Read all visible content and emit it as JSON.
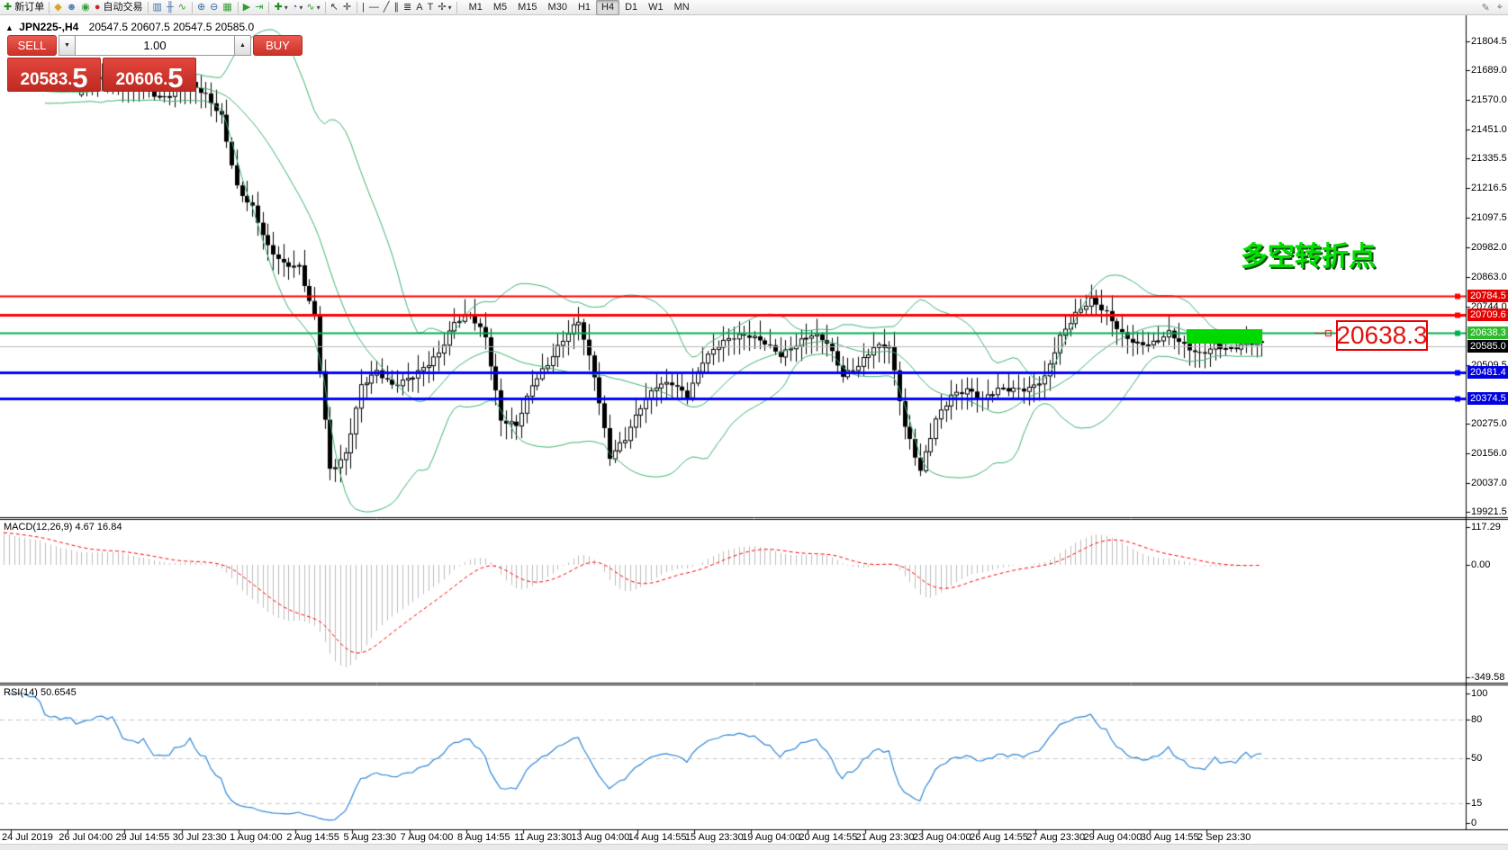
{
  "toolbar": {
    "items": [
      {
        "name": "new-order-icon",
        "glyph": "✚",
        "color": "#18941d",
        "label": "新订单"
      },
      {
        "sep": true
      },
      {
        "name": "eraser-icon",
        "glyph": "◆",
        "color": "#d9a41e"
      },
      {
        "name": "expert-advisor-icon",
        "glyph": "☻",
        "color": "#4a7ebf"
      },
      {
        "name": "signal-icon",
        "glyph": "◉",
        "color": "#2f9e2f"
      },
      {
        "name": "autotrade-icon",
        "glyph": "●",
        "color": "#cc2525",
        "label": "自动交易"
      },
      {
        "sep": true
      },
      {
        "name": "bar-chart-icon",
        "glyph": "▥",
        "color": "#3a6ea5"
      },
      {
        "name": "candlestick-chart-icon",
        "glyph": "╫",
        "color": "#3a6ea5"
      },
      {
        "name": "line-chart-icon",
        "glyph": "∿",
        "color": "#2f9e2f"
      },
      {
        "sep": true
      },
      {
        "name": "zoom-in-icon",
        "glyph": "⊕",
        "color": "#3a6ea5"
      },
      {
        "name": "zoom-out-icon",
        "glyph": "⊖",
        "color": "#3a6ea5"
      },
      {
        "name": "tile-windows-icon",
        "glyph": "▦",
        "color": "#2f9e2f"
      },
      {
        "sep": true
      },
      {
        "name": "auto-scroll-icon",
        "glyph": "▶",
        "color": "#2f9e2f"
      },
      {
        "name": "chart-shift-icon",
        "glyph": "⇥",
        "color": "#2f9e2f"
      },
      {
        "sep": true
      },
      {
        "name": "new-chart-icon",
        "glyph": "✚",
        "color": "#18941d",
        "dropdown": true
      },
      {
        "name": "periods-icon",
        "glyph": "◔",
        "color": "#3a6ea5",
        "dropdown": true
      },
      {
        "name": "indicators-icon",
        "glyph": "∿",
        "color": "#2f9e2f",
        "dropdown": true
      },
      {
        "sep": true
      },
      {
        "name": "cursor-icon",
        "glyph": "↖",
        "color": "#333333"
      },
      {
        "name": "crosshair-icon",
        "glyph": "✛",
        "color": "#333333"
      },
      {
        "sep": true
      },
      {
        "name": "vertical-line-icon",
        "glyph": "|",
        "color": "#333333"
      },
      {
        "name": "horizontal-line-icon",
        "glyph": "—",
        "color": "#333333"
      },
      {
        "name": "trendline-icon",
        "glyph": "╱",
        "color": "#333333"
      },
      {
        "name": "channel-icon",
        "glyph": "∥",
        "color": "#333333"
      },
      {
        "name": "fibonacci-icon",
        "glyph": "≣",
        "color": "#333333"
      },
      {
        "name": "text-icon",
        "glyph": "A",
        "color": "#333333"
      },
      {
        "name": "text-label-icon",
        "glyph": "T",
        "color": "#333333"
      },
      {
        "name": "arrows-icon",
        "glyph": "✢",
        "color": "#333333",
        "dropdown": true
      },
      {
        "sep": true
      }
    ],
    "timeframes": [
      "M1",
      "M5",
      "M15",
      "M30",
      "H1",
      "H4",
      "D1",
      "W1",
      "MN"
    ],
    "active_timeframe": "H4",
    "right_icons": [
      {
        "name": "edit-icon",
        "glyph": "✎",
        "color": "#777777"
      },
      {
        "name": "pointer-icon",
        "glyph": "⌖",
        "color": "#777777"
      }
    ]
  },
  "chart_header": {
    "marker": "▲",
    "symbol_period": "JPN225-,H4",
    "ohlc": "20547.5 20607.5 20547.5 20585.0"
  },
  "trade_panel": {
    "sell_label": "SELL",
    "buy_label": "BUY",
    "volume": "1.00",
    "spinner_down": "▼",
    "spinner_up": "▲",
    "sell_price_int": "20583",
    "sell_price_dot": ".",
    "sell_price_frac": "5",
    "buy_price_int": "20606",
    "buy_price_dot": ".",
    "buy_price_frac": "5"
  },
  "annotations": {
    "turning_point_text": "多空转折点",
    "price_callout": "20638.3"
  },
  "price_axis_ticks": [
    "21804.5",
    "21689.0",
    "21570.0",
    "21451.0",
    "21335.5",
    "21216.5",
    "21097.5",
    "20982.0",
    "20863.0",
    "20744.0",
    "20509.5",
    "20275.0",
    "20156.0",
    "20037.0",
    "19921.5"
  ],
  "line_labels": [
    {
      "label": "20784.5",
      "price": 20784.5,
      "color": "#e60000"
    },
    {
      "label": "20709.6",
      "price": 20709.6,
      "color": "#e60000"
    },
    {
      "label": "20638.3",
      "price": 20638.3,
      "color": "#2dbb2d"
    },
    {
      "label": "20585.0",
      "price": 20585.0,
      "color": "#000000"
    },
    {
      "label": "20481.4",
      "price": 20481.4,
      "color": "#0000e0"
    },
    {
      "label": "20374.5",
      "price": 20374.5,
      "color": "#0000e0"
    }
  ],
  "macd_pane": {
    "label": "MACD(12,26,9) 4.67 16.84",
    "ticks": [
      "117.29",
      "0.00",
      "-349.58"
    ]
  },
  "rsi_pane": {
    "label": "RSI(14) 50.6545",
    "ticks": [
      "100",
      "80",
      "50",
      "15",
      "0"
    ],
    "levels": [
      80,
      50,
      15
    ]
  },
  "time_axis": [
    "24 Jul 2019",
    "26 Jul 04:00",
    "29 Jul 14:55",
    "30 Jul 23:30",
    "1 Aug 04:00",
    "2 Aug 14:55",
    "5 Aug 23:30",
    "7 Aug 04:00",
    "8 Aug 14:55",
    "11 Aug 23:30",
    "13 Aug 04:00",
    "14 Aug 14:55",
    "15 Aug 23:30",
    "19 Aug 04:00",
    "20 Aug 14:55",
    "21 Aug 23:30",
    "23 Aug 04:00",
    "26 Aug 14:55",
    "27 Aug 23:30",
    "29 Aug 04:00",
    "30 Aug 14:55",
    "2 Sep 23:30"
  ],
  "chart_data": {
    "type": "candlestick",
    "symbol": "JPN225-",
    "timeframe": "H4",
    "y_range": [
      19921.5,
      21862.0
    ],
    "close_samples": [
      [
        0,
        21560
      ],
      [
        3,
        21600
      ],
      [
        6,
        21625
      ],
      [
        9,
        21585
      ],
      [
        12,
        21615
      ],
      [
        15,
        21610
      ],
      [
        18,
        21645
      ],
      [
        21,
        21655
      ],
      [
        24,
        21605
      ],
      [
        27,
        21630
      ],
      [
        30,
        21590
      ],
      [
        33,
        21605
      ],
      [
        36,
        21625
      ],
      [
        39,
        21575
      ],
      [
        42,
        21500
      ],
      [
        45,
        21230
      ],
      [
        48,
        21150
      ],
      [
        51,
        20980
      ],
      [
        54,
        20900
      ],
      [
        57,
        20890
      ],
      [
        60,
        20700
      ],
      [
        63,
        20100
      ],
      [
        66,
        20160
      ],
      [
        69,
        20420
      ],
      [
        72,
        20470
      ],
      [
        75,
        20420
      ],
      [
        78,
        20460
      ],
      [
        81,
        20510
      ],
      [
        84,
        20560
      ],
      [
        87,
        20670
      ],
      [
        90,
        20700
      ],
      [
        93,
        20620
      ],
      [
        96,
        20300
      ],
      [
        99,
        20280
      ],
      [
        102,
        20430
      ],
      [
        105,
        20500
      ],
      [
        108,
        20600
      ],
      [
        111,
        20690
      ],
      [
        114,
        20480
      ],
      [
        117,
        20150
      ],
      [
        120,
        20210
      ],
      [
        123,
        20330
      ],
      [
        126,
        20420
      ],
      [
        129,
        20445
      ],
      [
        132,
        20400
      ],
      [
        135,
        20530
      ],
      [
        138,
        20580
      ],
      [
        141,
        20610
      ],
      [
        144,
        20625
      ],
      [
        147,
        20610
      ],
      [
        150,
        20560
      ],
      [
        153,
        20590
      ],
      [
        156,
        20620
      ],
      [
        159,
        20590
      ],
      [
        162,
        20470
      ],
      [
        165,
        20520
      ],
      [
        168,
        20590
      ],
      [
        171,
        20580
      ],
      [
        174,
        20250
      ],
      [
        177,
        20080
      ],
      [
        180,
        20300
      ],
      [
        183,
        20400
      ],
      [
        186,
        20415
      ],
      [
        189,
        20360
      ],
      [
        192,
        20400
      ],
      [
        195,
        20410
      ],
      [
        198,
        20425
      ],
      [
        201,
        20470
      ],
      [
        204,
        20620
      ],
      [
        207,
        20700
      ],
      [
        210,
        20760
      ],
      [
        213,
        20720
      ],
      [
        216,
        20645
      ],
      [
        219,
        20600
      ],
      [
        222,
        20590
      ],
      [
        225,
        20625
      ],
      [
        228,
        20580
      ],
      [
        231,
        20560
      ],
      [
        234,
        20600
      ],
      [
        237,
        20575
      ],
      [
        240,
        20590
      ],
      [
        243,
        20585
      ]
    ],
    "horizontal_lines": [
      {
        "price": 20784.5,
        "color": "#ff0000",
        "width": 2
      },
      {
        "price": 20709.6,
        "color": "#ff0000",
        "width": 3
      },
      {
        "price": 20638.3,
        "color": "#00b050",
        "width": 2
      },
      {
        "price": 20585.0,
        "color": "#b8b8b8",
        "width": 1
      },
      {
        "price": 20481.4,
        "color": "#0000ff",
        "width": 3
      },
      {
        "price": 20374.5,
        "color": "#0000ff",
        "width": 3
      }
    ],
    "overlays": {
      "bollinger": {
        "period": 20,
        "deviations": 2,
        "color": "#3cb371"
      }
    },
    "indicators": {
      "macd": {
        "fast": 12,
        "slow": 26,
        "signal": 9,
        "current_values": "4.67 16.84",
        "histogram_color": "#bdbdbd",
        "signal_color": "#ff0000"
      },
      "rsi": {
        "period": 14,
        "current_value": "50.6545",
        "line_color": "#2f86d6"
      }
    },
    "highlight_box": {
      "from_index": 229,
      "to_index": 244,
      "top_price": 20652.7,
      "bottom_price": 20595.1,
      "color": "#00d900"
    }
  }
}
